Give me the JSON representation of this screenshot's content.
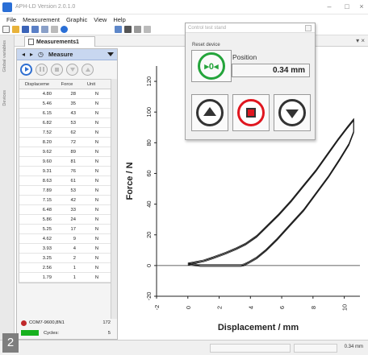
{
  "app": {
    "title": "APH-LD Version 2.0.1.0"
  },
  "menu": [
    "File",
    "Measurement",
    "Graphic",
    "View",
    "Help"
  ],
  "tab": {
    "label": "Measurements1"
  },
  "side_tabs": [
    "Global variables",
    "Devices"
  ],
  "panel": {
    "header_label": "Measure",
    "columns": [
      "Displaceme",
      "Force",
      "Unit"
    ],
    "rows": [
      [
        "4.80",
        "28",
        "N"
      ],
      [
        "5.46",
        "35",
        "N"
      ],
      [
        "6.15",
        "43",
        "N"
      ],
      [
        "6.82",
        "53",
        "N"
      ],
      [
        "7.52",
        "62",
        "N"
      ],
      [
        "8.20",
        "72",
        "N"
      ],
      [
        "9.62",
        "89",
        "N"
      ],
      [
        "9.60",
        "81",
        "N"
      ],
      [
        "9.31",
        "76",
        "N"
      ],
      [
        "8.63",
        "61",
        "N"
      ],
      [
        "7.89",
        "53",
        "N"
      ],
      [
        "7.15",
        "42",
        "N"
      ],
      [
        "6.48",
        "33",
        "N"
      ],
      [
        "5.86",
        "24",
        "N"
      ],
      [
        "5.25",
        "17",
        "N"
      ],
      [
        "4.62",
        "9",
        "N"
      ],
      [
        "3.93",
        "4",
        "N"
      ],
      [
        "3.25",
        "2",
        "N"
      ],
      [
        "2.56",
        "1",
        "N"
      ],
      [
        "1.79",
        "1",
        "N"
      ]
    ],
    "device": "COM7-9600,8N1",
    "device_count": "172",
    "cycles_label": "Cycles:",
    "cycles_value": "5"
  },
  "dialog": {
    "title": "Control test stand",
    "reset_label": "Reset device",
    "position_label": "Position",
    "position_value": "0.34 mm"
  },
  "status": {
    "position": "0.34 mm"
  },
  "badge": "2",
  "colors": {
    "accent": "#2f6fd1",
    "reset_green": "#24a43b",
    "stop_red": "#e0161f",
    "cycles_green": "#16b01e"
  },
  "chart_data": {
    "type": "line",
    "xlabel": "Displacement / mm",
    "ylabel": "Force / N",
    "xlim": [
      -2,
      11
    ],
    "ylim": [
      -20,
      130
    ],
    "xticks": [
      "-2",
      "0",
      "2",
      "4",
      "6",
      "8",
      "10"
    ],
    "yticks": [
      "120",
      "100",
      "80",
      "60",
      "40",
      "20",
      "0",
      "-20"
    ],
    "grid": false,
    "series": [
      {
        "x": [
          0,
          0.5,
          1.0,
          1.6,
          2.4,
          3.1,
          3.7,
          4.4,
          5.1,
          5.8,
          6.6,
          7.4,
          8.2,
          8.9,
          9.6,
          10.2,
          10.6,
          10.6,
          10.3,
          9.7,
          9.0,
          8.2,
          7.4,
          6.5,
          5.7,
          5.0,
          4.4,
          3.9,
          3.6,
          3.4,
          3.2,
          3.0,
          2.4,
          1.6,
          0.8,
          0
        ],
        "y": [
          1,
          2,
          3,
          5,
          8,
          11,
          14,
          19,
          26,
          33,
          42,
          52,
          62,
          72,
          82,
          90,
          95,
          87,
          79,
          69,
          58,
          47,
          36,
          26,
          17,
          10,
          5,
          2,
          0.5,
          0,
          0,
          0,
          0,
          0,
          0,
          1
        ]
      }
    ]
  }
}
